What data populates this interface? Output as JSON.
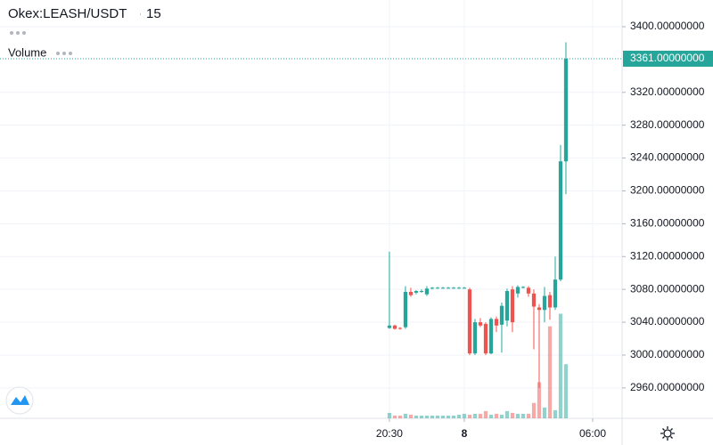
{
  "chart_data": {
    "type": "candlestick",
    "title": "Okex:LEASH/USDT",
    "interval": "15",
    "volume_label": "Volume",
    "x": [
      0,
      1,
      2,
      3,
      4,
      5,
      6,
      7,
      8,
      9,
      10,
      11,
      12,
      13,
      14,
      15,
      16,
      17,
      18,
      19,
      20,
      21,
      22,
      23,
      24,
      25,
      26,
      27,
      28,
      29,
      30,
      31,
      32,
      33
    ],
    "open": [
      3033,
      3036,
      3033,
      3034,
      3077,
      3076,
      3078,
      3074,
      3081,
      3082,
      3082,
      3082,
      3082,
      3082,
      3082,
      3080,
      3002,
      3040,
      3038,
      3002,
      3044,
      3037,
      3042,
      3080,
      3075,
      3083,
      3082,
      3075,
      3058,
      3055,
      3073,
      3058,
      3092,
      3236
    ],
    "high": [
      3126,
      3037,
      3034,
      3084,
      3082,
      3079,
      3080,
      3084,
      3083,
      3083,
      3083,
      3083,
      3083,
      3083,
      3083,
      3082,
      3044,
      3045,
      3040,
      3046,
      3047,
      3064,
      3081,
      3084,
      3085,
      3084,
      3084,
      3080,
      3062,
      3083,
      3077,
      3120,
      3256,
      3381
    ],
    "low": [
      3032,
      3031,
      3031,
      3032,
      3071,
      3074,
      3076,
      3072,
      3080,
      3081,
      3081,
      3081,
      3081,
      3081,
      3081,
      3000,
      3000,
      3034,
      3000,
      3001,
      3028,
      3003,
      3035,
      3028,
      3070,
      3081,
      3071,
      3007,
      2960,
      3040,
      3043,
      3055,
      3090,
      3196
    ],
    "close": [
      3036,
      3032,
      3032,
      3077,
      3073,
      3078,
      3078,
      3081,
      3082,
      3082,
      3082,
      3082,
      3082,
      3082,
      3082,
      3002,
      3040,
      3036,
      3002,
      3044,
      3036,
      3060,
      3078,
      3040,
      3083,
      3083,
      3075,
      3059,
      3055,
      3072,
      3058,
      3092,
      3236,
      3361
    ],
    "volume": [
      6,
      3,
      3,
      5,
      4,
      3,
      3,
      3,
      3,
      3,
      3,
      3,
      3,
      4,
      5,
      4,
      5,
      5,
      8,
      4,
      5,
      4,
      8,
      6,
      5,
      5,
      5,
      17,
      40,
      12,
      102,
      9,
      116,
      60
    ],
    "up_color": "#26a69a",
    "down_color": "#ef5350",
    "xlim": [
      -72.8,
      43.5
    ],
    "xticks": [
      {
        "value": 0,
        "label": "20:30"
      },
      {
        "value": 14,
        "label": "8"
      },
      {
        "value": 38,
        "label": "06:00"
      }
    ],
    "ylim": [
      2923,
      3432.5
    ],
    "yticks": [
      {
        "value": 2960,
        "label": "2960.00000000"
      },
      {
        "value": 3000,
        "label": "3000.00000000"
      },
      {
        "value": 3040,
        "label": "3040.00000000"
      },
      {
        "value": 3080,
        "label": "3080.00000000"
      },
      {
        "value": 3120,
        "label": "3120.00000000"
      },
      {
        "value": 3160,
        "label": "3160.00000000"
      },
      {
        "value": 3200,
        "label": "3200.00000000"
      },
      {
        "value": 3240,
        "label": "3240.00000000"
      },
      {
        "value": 3280,
        "label": "3280.00000000"
      },
      {
        "value": 3320,
        "label": "3320.00000000"
      },
      {
        "value": 3400,
        "label": "3400.00000000"
      }
    ],
    "last_price": {
      "value": 3361,
      "label": "3361.00000000"
    },
    "grid": true
  }
}
